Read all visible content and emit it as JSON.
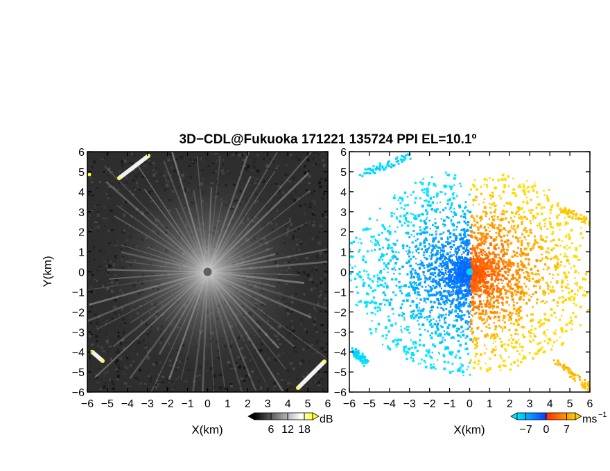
{
  "title": "3D−CDL@Fukuoka 171221 135724 PPI EL=10.1º",
  "chart_data": [
    {
      "type": "heatmap",
      "panel": "left",
      "field": "signal intensity",
      "xlabel": "X(km)",
      "ylabel": "Y(km)",
      "xlim": [
        -6,
        6
      ],
      "ylim": [
        -6,
        6
      ],
      "xticks": [
        "−6",
        "−5",
        "−4",
        "−3",
        "−2",
        "−1",
        "0",
        "1",
        "2",
        "3",
        "4",
        "5",
        "6"
      ],
      "yticks": [
        "6",
        "5",
        "4",
        "3",
        "2",
        "1",
        "0",
        "−1",
        "−2",
        "−3",
        "−4",
        "−5",
        "−6"
      ],
      "colormap": [
        "#000000",
        "#ffffff",
        "#ffff00"
      ],
      "colorbar": {
        "unit": "dB",
        "ticks": [
          "6",
          "12",
          "18"
        ],
        "range": [
          0,
          21
        ]
      }
    },
    {
      "type": "heatmap",
      "panel": "right",
      "field": "Doppler velocity",
      "xlabel": "X(km)",
      "xlim": [
        -6,
        6
      ],
      "ylim": [
        -6,
        6
      ],
      "xticks": [
        "−6",
        "−5",
        "−4",
        "−3",
        "−2",
        "−1",
        "0",
        "1",
        "2",
        "3",
        "4",
        "5",
        "6"
      ],
      "yticks": [
        "6",
        "5",
        "4",
        "3",
        "2",
        "1",
        "0",
        "−1",
        "−2",
        "−3",
        "−4",
        "−5",
        "−6"
      ],
      "colormap": [
        "#00e5ff",
        "#0a3cff",
        "#ff2a00",
        "#ffcc00"
      ],
      "colorbar": {
        "unit": "ms",
        "unit_exponent": "−1",
        "ticks": [
          "−7",
          "0",
          "7"
        ],
        "range": [
          -10,
          10
        ]
      }
    }
  ]
}
